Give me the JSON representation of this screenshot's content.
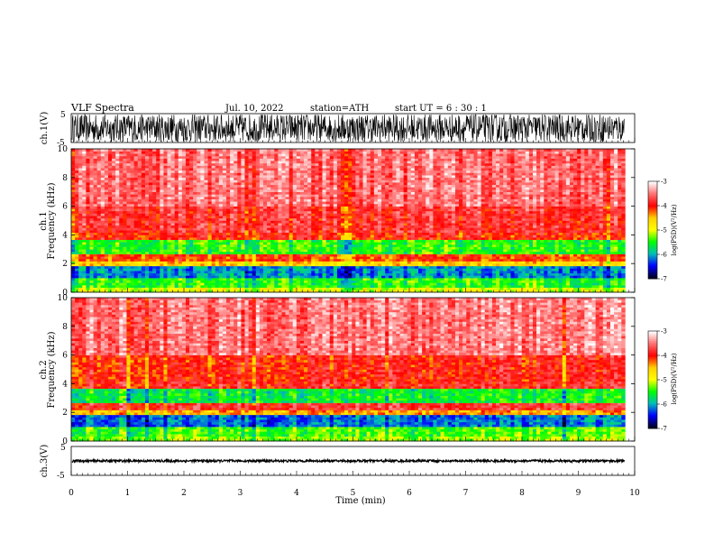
{
  "header": {
    "title": "VLF  Spectra",
    "date": "Jul.  10,  2022",
    "station": "station=ATH",
    "start_ut": "start  UT  =    6  : 30 : 1"
  },
  "colorbar": {
    "label": "log(PSD)(V²/Hz)",
    "ticks": [
      "-3",
      "-4",
      "-5",
      "-6",
      "-7"
    ],
    "colors": [
      "#ffffff",
      "#ff7070",
      "#ff0000",
      "#ffd000",
      "#ffff00",
      "#00ff00",
      "#00bbbb",
      "#0000ff",
      "#000022"
    ]
  },
  "chart_data": [
    {
      "type": "line",
      "name": "ch1-waveform",
      "ylabel": "ch.1(V)",
      "ylim": [
        -5,
        5
      ],
      "yticks": [
        "5",
        "-5"
      ],
      "amplitude_range": [
        -5,
        5
      ]
    },
    {
      "type": "heatmap",
      "name": "ch1-spectrogram",
      "ylabel": "ch.1\nFrequency  (kHz)",
      "ylabel_line1": "ch.1",
      "ylabel_line2": "Frequency  (kHz)",
      "ylim": [
        0,
        10
      ],
      "yticks": [
        "0",
        "2",
        "4",
        "6",
        "8",
        "10"
      ],
      "bands": [
        {
          "f": [
            0,
            0.4
          ],
          "level": 0.5
        },
        {
          "f": [
            0.4,
            1.0
          ],
          "level": 0.62
        },
        {
          "f": [
            1.0,
            1.8
          ],
          "level": 0.78
        },
        {
          "f": [
            1.8,
            2.1
          ],
          "level": 0.4
        },
        {
          "f": [
            2.1,
            2.6
          ],
          "level": 0.28
        },
        {
          "f": [
            2.6,
            3.6
          ],
          "level": 0.62
        },
        {
          "f": [
            3.6,
            4.2
          ],
          "level": 0.25
        },
        {
          "f": [
            4.2,
            6.0
          ],
          "level": 0.2
        },
        {
          "f": [
            6.0,
            10.0
          ],
          "level": 0.13
        }
      ]
    },
    {
      "type": "heatmap",
      "name": "ch2-spectrogram",
      "ylabel": "ch.2\nFrequency  (kHz)",
      "ylabel_line1": "ch.2",
      "ylabel_line2": "Frequency  (kHz)",
      "ylim": [
        0,
        10
      ],
      "yticks": [
        "0",
        "2",
        "4",
        "6",
        "8",
        "10"
      ],
      "bands": [
        {
          "f": [
            0,
            0.4
          ],
          "level": 0.55
        },
        {
          "f": [
            0.4,
            1.0
          ],
          "level": 0.6
        },
        {
          "f": [
            1.0,
            1.8
          ],
          "level": 0.8
        },
        {
          "f": [
            1.8,
            2.1
          ],
          "level": 0.35
        },
        {
          "f": [
            2.1,
            2.6
          ],
          "level": 0.2
        },
        {
          "f": [
            2.6,
            3.6
          ],
          "level": 0.65
        },
        {
          "f": [
            3.6,
            4.2
          ],
          "level": 0.22
        },
        {
          "f": [
            4.2,
            6.0
          ],
          "level": 0.24
        },
        {
          "f": [
            6.0,
            10.0
          ],
          "level": 0.12
        }
      ]
    },
    {
      "type": "line",
      "name": "ch3-waveform",
      "ylabel": "ch.3(V)",
      "ylim": [
        -5,
        5
      ],
      "yticks": [
        "5",
        "-5"
      ],
      "amplitude_range": [
        -0.4,
        0.4
      ]
    }
  ],
  "xaxis": {
    "xlabel": "Time  (min)",
    "xlim": [
      0,
      10
    ],
    "ticks": [
      "0",
      "1",
      "2",
      "3",
      "4",
      "5",
      "6",
      "7",
      "8",
      "9",
      "10"
    ],
    "data_end": 9.83
  }
}
